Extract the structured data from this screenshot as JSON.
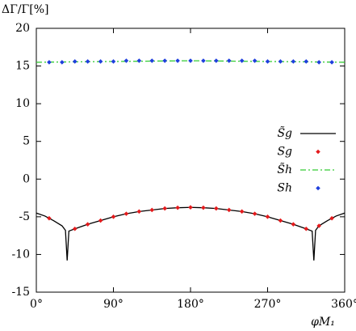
{
  "chart_data": {
    "type": "line",
    "ylabel": "ΔΓ/Γ[%]",
    "xlabel": "φM₁",
    "xlim": [
      0,
      360
    ],
    "ylim": [
      -15,
      20
    ],
    "xticks": [
      {
        "value": 0,
        "label": "0°"
      },
      {
        "value": 90,
        "label": "90°"
      },
      {
        "value": 180,
        "label": "180°"
      },
      {
        "value": 270,
        "label": "270°"
      },
      {
        "value": 360,
        "label": "360°"
      }
    ],
    "yticks": [
      -15,
      -10,
      -5,
      0,
      5,
      10,
      15,
      20
    ],
    "legend": "right",
    "series": [
      {
        "name": "S̃g",
        "color": "#000000",
        "mode": "line",
        "dash": "solid",
        "x": [
          0,
          10,
          20,
          30,
          34,
          36,
          38,
          45,
          60,
          75,
          90,
          105,
          120,
          135,
          150,
          165,
          180,
          195,
          210,
          225,
          240,
          255,
          270,
          285,
          300,
          315,
          322,
          324,
          326,
          330,
          340,
          350,
          360
        ],
        "values": [
          -4.5,
          -4.9,
          -5.5,
          -6.2,
          -6.8,
          -10.8,
          -6.9,
          -6.6,
          -6.0,
          -5.5,
          -5.0,
          -4.6,
          -4.3,
          -4.1,
          -3.9,
          -3.8,
          -3.75,
          -3.8,
          -3.9,
          -4.1,
          -4.3,
          -4.6,
          -5.0,
          -5.5,
          -6.0,
          -6.6,
          -6.9,
          -10.8,
          -6.8,
          -6.2,
          -5.5,
          -4.9,
          -4.5
        ]
      },
      {
        "name": "Sg",
        "color": "#e41a1c",
        "mode": "markers",
        "x": [
          15,
          45,
          60,
          75,
          90,
          105,
          120,
          135,
          150,
          165,
          180,
          195,
          210,
          225,
          240,
          255,
          270,
          285,
          300,
          315,
          330,
          345
        ],
        "values": [
          -5.2,
          -6.6,
          -6.0,
          -5.5,
          -5.0,
          -4.6,
          -4.3,
          -4.1,
          -3.9,
          -3.8,
          -3.75,
          -3.8,
          -3.9,
          -4.1,
          -4.3,
          -4.6,
          -5.0,
          -5.5,
          -6.0,
          -6.6,
          -6.2,
          -5.2
        ]
      },
      {
        "name": "S̃h",
        "color": "#33cc33",
        "mode": "line",
        "dash": "dashdot",
        "x": [
          0,
          90,
          180,
          270,
          360
        ],
        "values": [
          15.5,
          15.6,
          15.7,
          15.6,
          15.5
        ]
      },
      {
        "name": "Sh",
        "color": "#1f3fdd",
        "mode": "markers",
        "x": [
          15,
          30,
          45,
          60,
          75,
          90,
          105,
          120,
          135,
          150,
          165,
          180,
          195,
          210,
          225,
          240,
          255,
          270,
          285,
          300,
          315,
          330,
          345
        ],
        "values": [
          15.5,
          15.5,
          15.6,
          15.6,
          15.6,
          15.6,
          15.7,
          15.7,
          15.7,
          15.7,
          15.7,
          15.7,
          15.7,
          15.7,
          15.7,
          15.7,
          15.7,
          15.6,
          15.6,
          15.6,
          15.6,
          15.5,
          15.5
        ]
      }
    ]
  }
}
